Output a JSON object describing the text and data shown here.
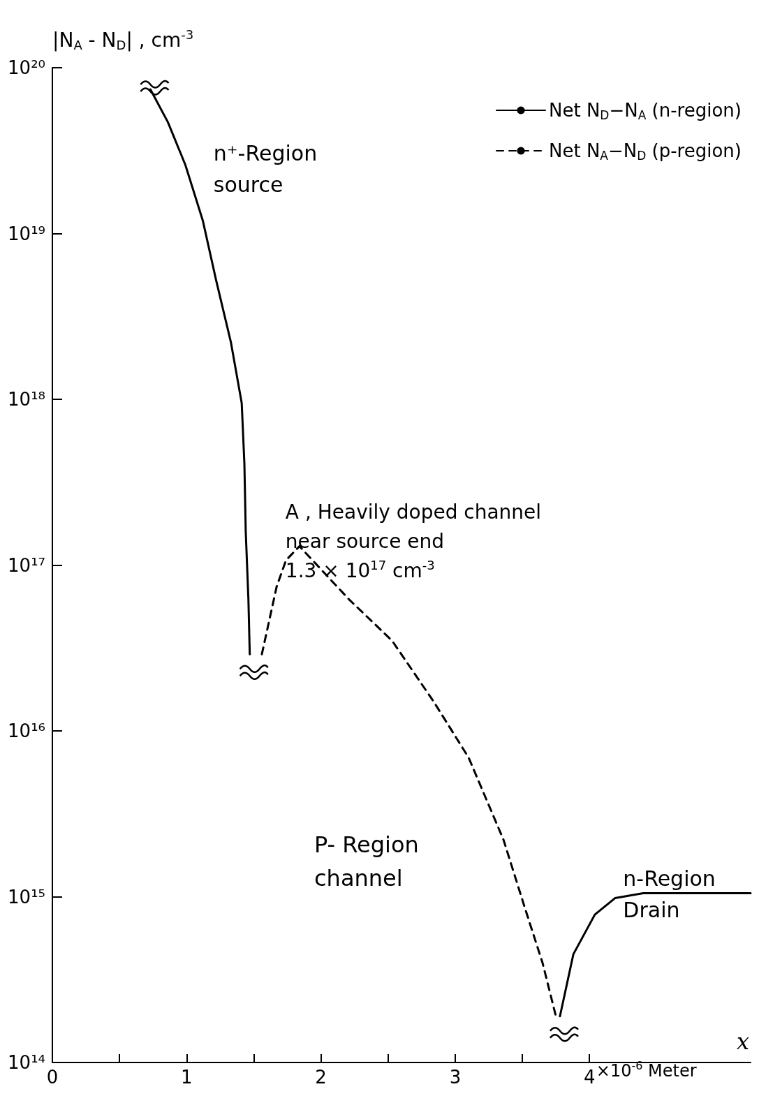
{
  "chart_data": {
    "type": "line",
    "ylabel": "|N$_{A}$ - N$_{D}$| , cm$^{-3}$",
    "xlabel": "x",
    "log": "y",
    "grid": false,
    "legend": "top right",
    "marker": "none",
    "xlim": [
      0,
      5.2
    ],
    "ylim": [
      100000000000000.0,
      1e+20
    ],
    "xticks": [
      0,
      {
        "value": 0.5,
        "label": null
      },
      1,
      {
        "value": 1.5,
        "label": null
      },
      2,
      {
        "value": 2.5,
        "label": null
      },
      3,
      {
        "value": 3.5,
        "label": null
      },
      4
    ],
    "yticks": [
      {
        "value": 100000000000000.0,
        "label": "10¹⁴"
      },
      {
        "value": 1000000000000000.0,
        "label": "10¹⁵"
      },
      {
        "value": 1e+16,
        "label": "10¹⁶"
      },
      {
        "value": 1e+17,
        "label": "10¹⁷"
      },
      {
        "value": 1e+18,
        "label": "10¹⁸"
      },
      {
        "value": 1e+19,
        "label": "10¹⁹"
      },
      {
        "value": 1e+20,
        "label": "10²⁰"
      }
    ],
    "series": [
      {
        "name": "Net N$_{D}$−N$_{A}$ (n-region)",
        "color": "#000000",
        "line_style": "solid",
        "x": [
          0.73,
          0.86,
          0.99,
          1.12,
          1.22,
          1.33,
          1.41,
          1.43,
          1.44,
          1.46,
          1.47,
          2.5,
          3.78,
          3.88,
          4.04,
          4.19,
          4.4,
          5.2
        ],
        "values": [
          7.4e+19,
          4.7e+19,
          2.6e+19,
          1.2e+19,
          5.2e+18,
          2.2e+18,
          9.5e+17,
          4.1e+17,
          1.6e+17,
          6.2e+16,
          2.9e+16,
          null,
          190000000000000.0,
          450000000000000.0,
          780000000000000.0,
          980000000000000.0,
          1050000000000000.0,
          1050000000000000.0
        ]
      },
      {
        "name": "Net N$_{A}$−N$_{D}$ (p-region)",
        "color": "#000000",
        "line_style": "dashed",
        "x": [
          1.56,
          1.67,
          1.74,
          1.84,
          2.21,
          2.53,
          2.84,
          3.1,
          3.36,
          3.52,
          3.65,
          3.75
        ],
        "values": [
          2.9e+16,
          7.4e+16,
          1.07e+17,
          1.3e+17,
          6.2e+16,
          3.5e+16,
          1.5e+16,
          6900000000000000.0,
          2200000000000000.0,
          850000000000000.0,
          400000000000000.0,
          190000000000000.0
        ]
      }
    ],
    "annotations": [
      "n⁺-Region\nsource",
      {
        "text": "A , Heavily doped channel\nnear source end\n1.3 × 10$^{17}$ cm$^{-3}$",
        "x": 1.84,
        "y": 1.3e+17
      },
      "P- Region\nchannel",
      "n-Region\nDrain",
      "×10$^{-6}$ Meter"
    ]
  }
}
